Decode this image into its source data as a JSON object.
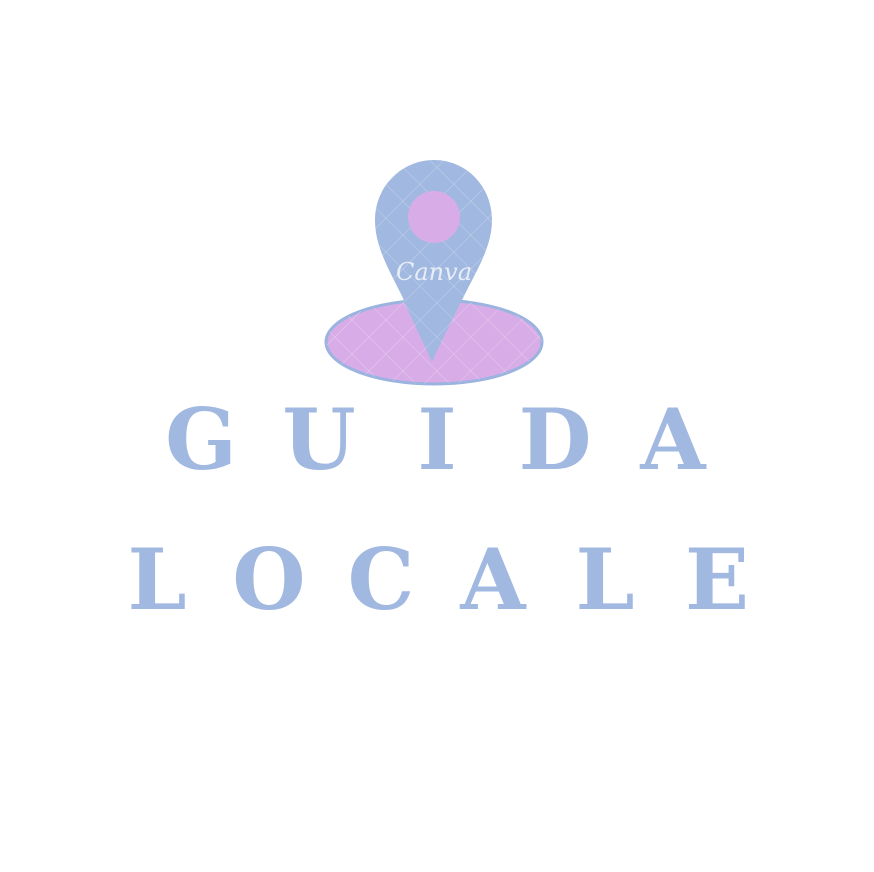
{
  "logo": {
    "icon": "map-pin-icon",
    "watermark_text": "Canva",
    "colors": {
      "pin": "#a1b8e0",
      "accent": "#d8ade7",
      "outline": "#9ab3df"
    }
  },
  "brand": {
    "line1": [
      "G",
      "U",
      "I",
      "D",
      "A"
    ],
    "line2": [
      "L",
      "O",
      "C",
      "A",
      "L",
      "E"
    ],
    "text_color": "#a1b8e0"
  }
}
